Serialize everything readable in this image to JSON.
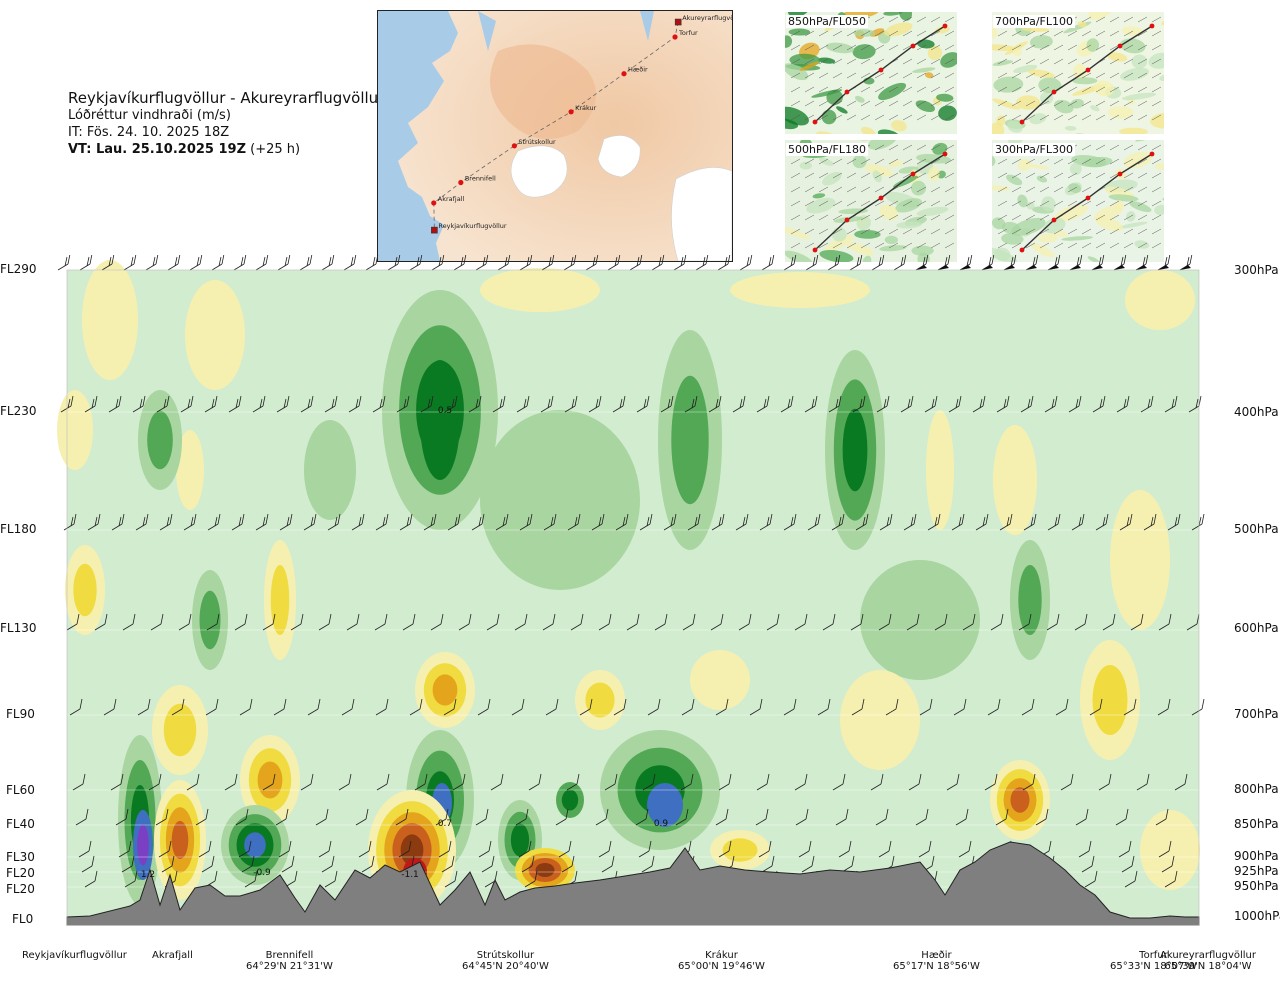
{
  "header": {
    "route": "Reykjavíkurflugvöllur - Akureyrarflugvöllur",
    "variable": "Lóðréttur vindhraði (m/s)",
    "issue_time": "IT: Fös. 24. 10. 2025 18Z",
    "valid_prefix": "VT: Lau. 25.10.2025 19Z",
    "valid_suffix": " (+25 h)"
  },
  "map": {
    "points": [
      {
        "name": "Akureyrarflugvöllur",
        "lon": -18.07,
        "lat": 65.66,
        "airport": true
      },
      {
        "name": "Torfur",
        "lon": -18.12,
        "lat": 65.55,
        "airport": false
      },
      {
        "name": "Hæðir",
        "lon": -18.93,
        "lat": 65.28,
        "airport": false
      },
      {
        "name": "Krákur",
        "lon": -19.77,
        "lat": 65.0,
        "airport": false
      },
      {
        "name": "Strútskollur",
        "lon": -20.67,
        "lat": 64.75,
        "airport": false
      },
      {
        "name": "Brennifell",
        "lon": -21.52,
        "lat": 64.48,
        "airport": false
      },
      {
        "name": "Akrafjall",
        "lon": -21.95,
        "lat": 64.33,
        "airport": false
      },
      {
        "name": "Reykjavíkurflugvöllur",
        "lon": -21.94,
        "lat": 64.13,
        "airport": true
      }
    ]
  },
  "insets": [
    {
      "label": "850hPa/FL050"
    },
    {
      "label": "700hPa/FL100"
    },
    {
      "label": "500hPa/FL180"
    },
    {
      "label": "300hPa/FL300"
    }
  ],
  "axis_left": [
    "FL290",
    "FL230",
    "FL180",
    "FL130",
    "FL90",
    "FL60",
    "FL40",
    "FL30",
    "FL20",
    "FL20",
    "FL0"
  ],
  "axis_right": [
    "300hPa",
    "400hPa",
    "500hPa",
    "600hPa",
    "700hPa",
    "800hPa",
    "850hPa",
    "900hPa",
    "925hPa",
    "950hPa",
    "1000hPa"
  ],
  "bottom_points": [
    {
      "name": "Reykjavíkurflugvöllur",
      "coord": ""
    },
    {
      "name": "Akrafjall",
      "coord": ""
    },
    {
      "name": "Brennifell",
      "coord": "64°29'N 21°31'W"
    },
    {
      "name": "Strútskollur",
      "coord": "64°45'N 20°40'W"
    },
    {
      "name": "Krákur",
      "coord": "65°00'N 19°46'W"
    },
    {
      "name": "Hæðir",
      "coord": "65°17'N 18°56'W"
    },
    {
      "name": "Torfur",
      "coord": "65°33'N 18°07'W"
    },
    {
      "name": "Akureyrarflugvöllur",
      "coord": "65°39'N 18°04'W"
    }
  ],
  "colors": {
    "strong_up": "#7b3fc4",
    "up3": "#3f6fc0",
    "up2": "#0a7a22",
    "up1": "#52a855",
    "up0": "#a8d5a0",
    "neutral": "#d2ecd0",
    "down0": "#f6f0b0",
    "down1": "#f0dc40",
    "down2": "#e4a41c",
    "down3": "#c9601e",
    "down4": "#8c3a10",
    "terrain": "#7f7f7f"
  },
  "chart_data": {
    "type": "heatmap",
    "title": "Lóðréttur vindhraði (m/s)",
    "x": [
      "Reykjavíkurflugvöllur",
      "Akrafjall",
      "Brennifell",
      "Strútskollur",
      "Krákur",
      "Hæðir",
      "Torfur",
      "Akureyrarflugvöllur"
    ],
    "y_left": [
      "FL0",
      "FL20",
      "FL20",
      "FL30",
      "FL40",
      "FL60",
      "FL90",
      "FL130",
      "FL180",
      "FL230",
      "FL290"
    ],
    "y_right": [
      "1000hPa",
      "950hPa",
      "925hPa",
      "900hPa",
      "850hPa",
      "800hPa",
      "700hPa",
      "600hPa",
      "500hPa",
      "400hPa",
      "300hPa"
    ],
    "annotations": [
      {
        "text": "1.2",
        "near": "Akrafjall",
        "level": "925hPa"
      },
      {
        "text": "-0.9",
        "near": "Brennifell",
        "level": "925hPa"
      },
      {
        "text": "0.7",
        "near": "Strútskollur",
        "level": "850hPa"
      },
      {
        "text": "-1.1",
        "near": "Strútskollur",
        "level": "925hPa"
      },
      {
        "text": "0.9",
        "near": "Krákur",
        "level": "850hPa"
      },
      {
        "text": "0.5",
        "near": "Strútskollur",
        "level": "400hPa"
      }
    ]
  }
}
